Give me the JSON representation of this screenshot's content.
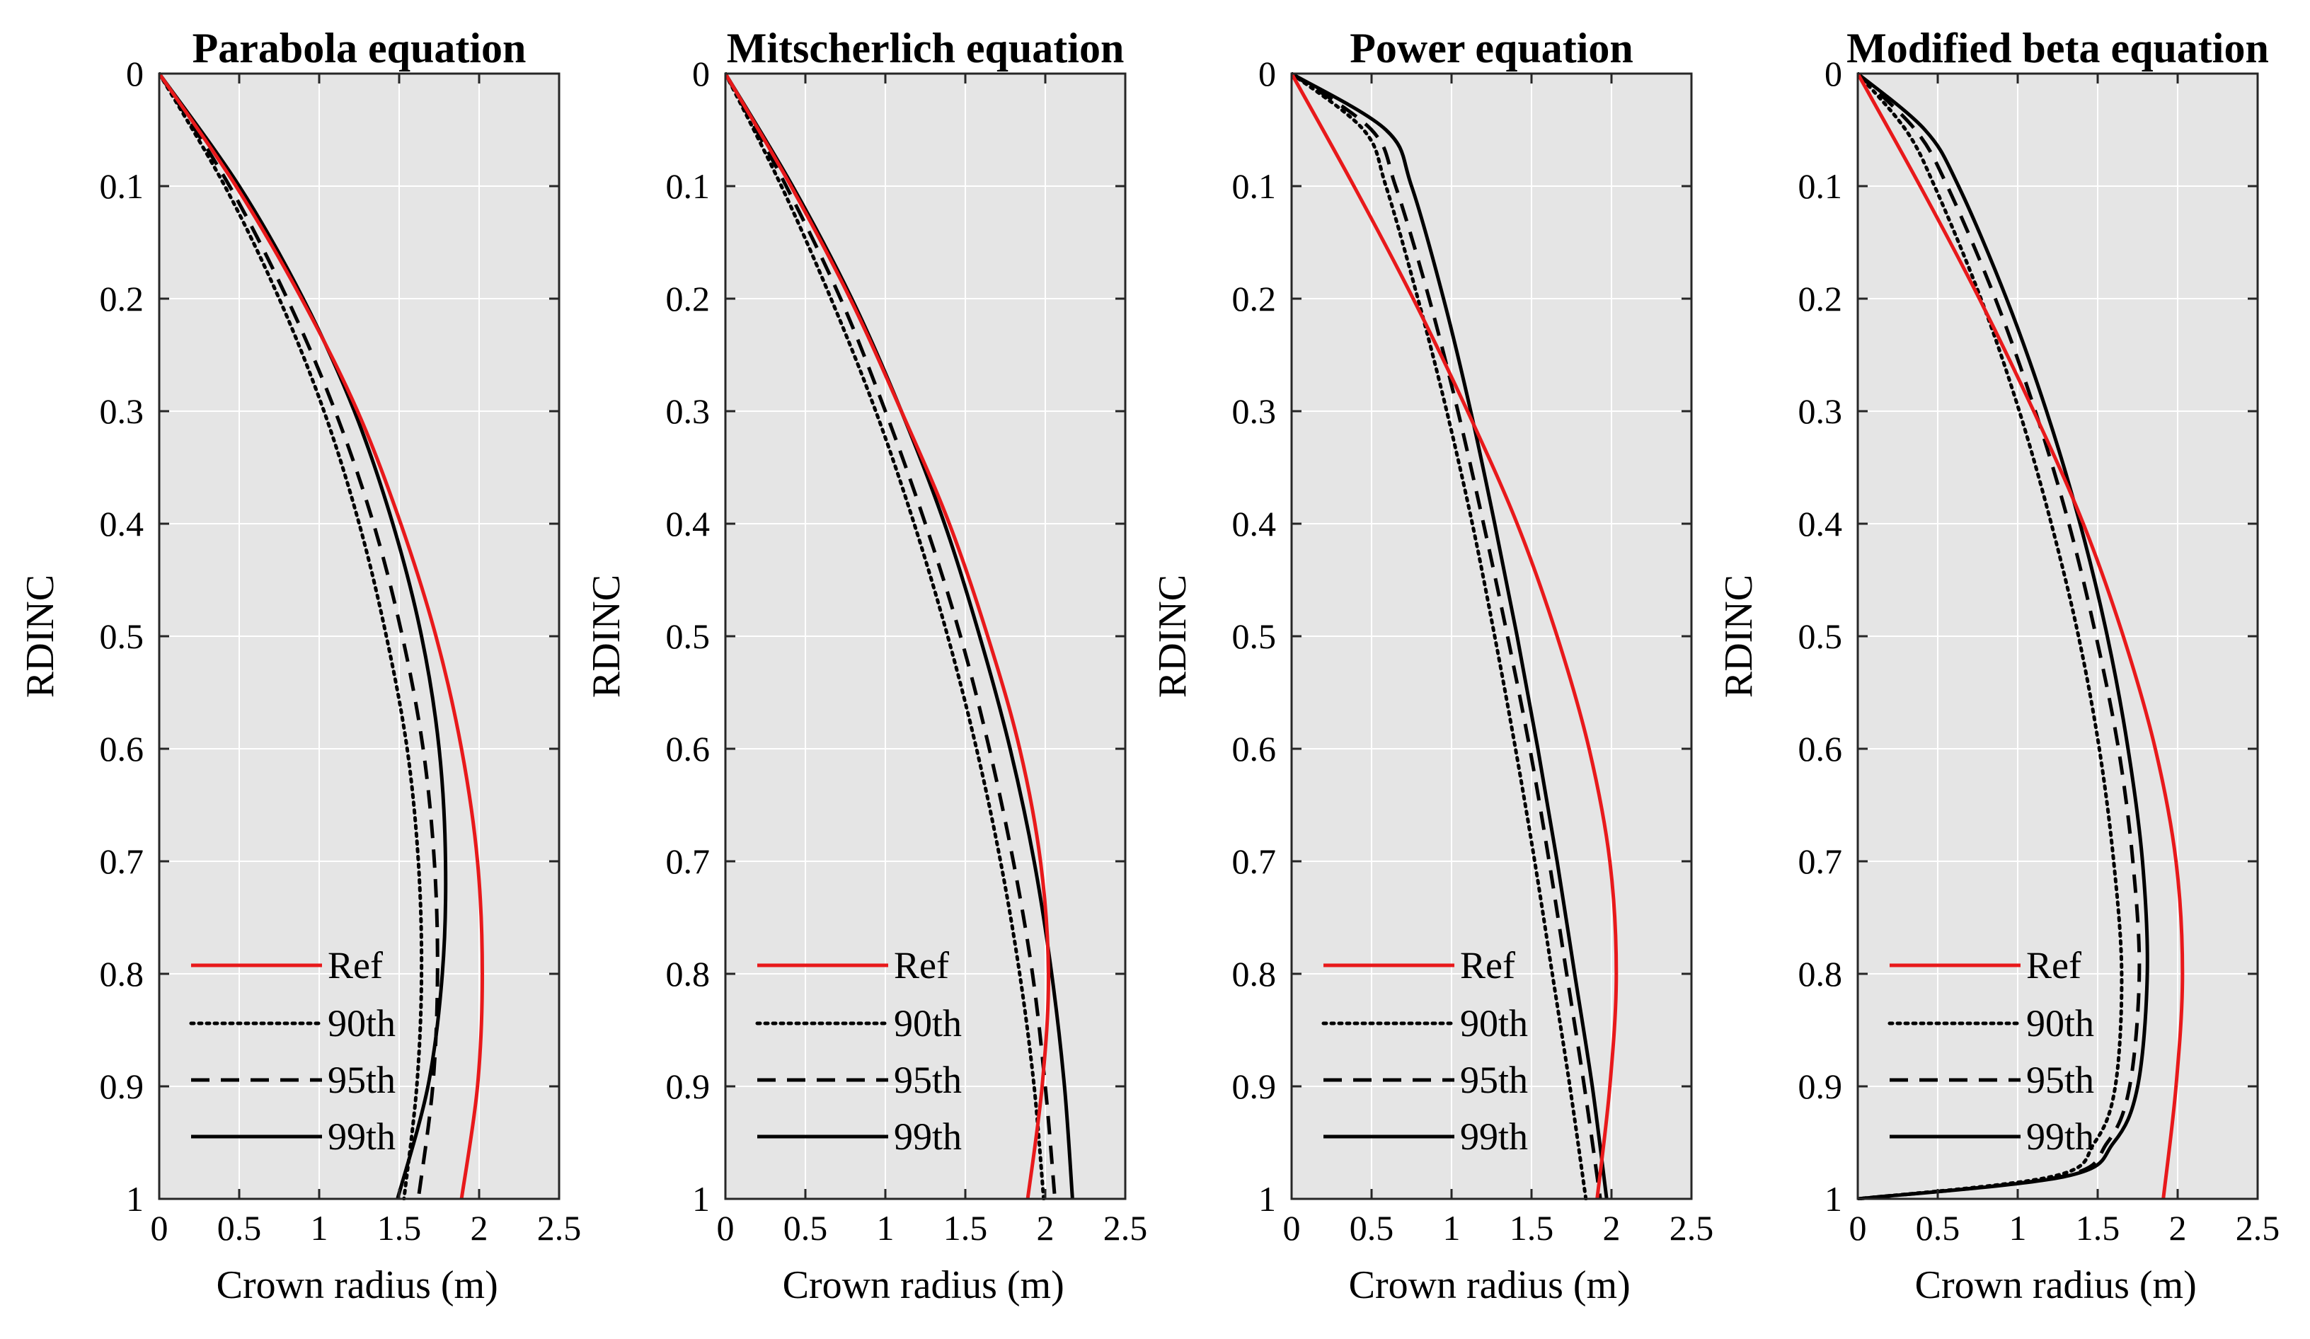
{
  "figure": {
    "plot_background": "#e5e5e5",
    "grid_color": "#ffffff",
    "colors": {
      "ref": "#e8191b",
      "percentile": "#000000"
    }
  },
  "chart_data": [
    {
      "type": "line",
      "title": "Parabola equation",
      "xlabel": "Crown radius (m)",
      "ylabel": "RDINC",
      "xlim": [
        0,
        2.5
      ],
      "ylim": [
        0,
        1
      ],
      "y_reversed": true,
      "xticks": [
        "0",
        "0.5",
        "1",
        "1.5",
        "2",
        "2.5"
      ],
      "yticks": [
        "0",
        "0.1",
        "0.2",
        "0.3",
        "0.4",
        "0.5",
        "0.6",
        "0.7",
        "0.8",
        "0.9",
        "1"
      ],
      "legend": [
        "Ref",
        "90th",
        "95th",
        "99th"
      ],
      "legend_position": "bottom-left",
      "series": [
        {
          "name": "Ref",
          "style": "solid",
          "color": "#e8191b",
          "y": [
            0,
            0.1,
            0.2,
            0.3,
            0.4,
            0.5,
            0.6,
            0.7,
            0.8,
            0.9,
            1.0
          ],
          "x": [
            0,
            0.48,
            0.89,
            1.24,
            1.51,
            1.73,
            1.89,
            1.99,
            2.02,
            1.99,
            1.89
          ]
        },
        {
          "name": "90th",
          "style": "dotted",
          "color": "#000000",
          "y": [
            0,
            0.1,
            0.2,
            0.3,
            0.4,
            0.5,
            0.6,
            0.7,
            0.8,
            0.9,
            1.0
          ],
          "x": [
            0,
            0.41,
            0.75,
            1.03,
            1.25,
            1.42,
            1.55,
            1.62,
            1.64,
            1.61,
            1.53
          ]
        },
        {
          "name": "95th",
          "style": "dashed",
          "color": "#000000",
          "y": [
            0,
            0.1,
            0.2,
            0.3,
            0.4,
            0.5,
            0.6,
            0.7,
            0.8,
            0.9,
            1.0
          ],
          "x": [
            0,
            0.44,
            0.8,
            1.1,
            1.34,
            1.52,
            1.65,
            1.72,
            1.74,
            1.71,
            1.62
          ]
        },
        {
          "name": "99th",
          "style": "solid",
          "color": "#000000",
          "y": [
            0,
            0.1,
            0.2,
            0.3,
            0.4,
            0.5,
            0.6,
            0.7,
            0.8,
            0.9,
            1.0
          ],
          "x": [
            0,
            0.5,
            0.9,
            1.22,
            1.46,
            1.64,
            1.75,
            1.79,
            1.77,
            1.68,
            1.49
          ]
        }
      ]
    },
    {
      "type": "line",
      "title": "Mitscherlich equation",
      "xlabel": "Crown radius (m)",
      "ylabel": "RDINC",
      "xlim": [
        0,
        2.5
      ],
      "ylim": [
        0,
        1
      ],
      "y_reversed": true,
      "xticks": [
        "0",
        "0.5",
        "1",
        "1.5",
        "2",
        "2.5"
      ],
      "yticks": [
        "0",
        "0.1",
        "0.2",
        "0.3",
        "0.4",
        "0.5",
        "0.6",
        "0.7",
        "0.8",
        "0.9",
        "1"
      ],
      "legend": [
        "Ref",
        "90th",
        "95th",
        "99th"
      ],
      "legend_position": "bottom-left",
      "series": [
        {
          "name": "Ref",
          "style": "solid",
          "color": "#e8191b",
          "y": [
            0,
            0.1,
            0.2,
            0.3,
            0.4,
            0.5,
            0.6,
            0.7,
            0.8,
            0.9,
            1.0
          ],
          "x": [
            0,
            0.41,
            0.78,
            1.1,
            1.4,
            1.64,
            1.84,
            1.97,
            2.02,
            1.98,
            1.89
          ]
        },
        {
          "name": "90th",
          "style": "dotted",
          "color": "#000000",
          "y": [
            0,
            0.1,
            0.2,
            0.3,
            0.4,
            0.5,
            0.6,
            0.7,
            0.8,
            0.9,
            1.0
          ],
          "x": [
            0,
            0.35,
            0.66,
            0.94,
            1.18,
            1.39,
            1.57,
            1.72,
            1.84,
            1.93,
            1.99
          ]
        },
        {
          "name": "95th",
          "style": "dashed",
          "color": "#000000",
          "y": [
            0,
            0.1,
            0.2,
            0.3,
            0.4,
            0.5,
            0.6,
            0.7,
            0.8,
            0.9,
            1.0
          ],
          "x": [
            0,
            0.38,
            0.72,
            1.0,
            1.25,
            1.47,
            1.65,
            1.8,
            1.92,
            2.0,
            2.06
          ]
        },
        {
          "name": "99th",
          "style": "solid",
          "color": "#000000",
          "y": [
            0,
            0.1,
            0.2,
            0.3,
            0.4,
            0.5,
            0.6,
            0.7,
            0.8,
            0.9,
            1.0
          ],
          "x": [
            0,
            0.42,
            0.79,
            1.1,
            1.37,
            1.59,
            1.78,
            1.93,
            2.04,
            2.12,
            2.17
          ]
        }
      ]
    },
    {
      "type": "line",
      "title": "Power equation",
      "xlabel": "Crown radius (m)",
      "ylabel": "RDINC",
      "xlim": [
        0,
        2.5
      ],
      "ylim": [
        0,
        1
      ],
      "y_reversed": true,
      "xticks": [
        "0",
        "0.5",
        "1",
        "1.5",
        "2",
        "2.5"
      ],
      "yticks": [
        "0",
        "0.1",
        "0.2",
        "0.3",
        "0.4",
        "0.5",
        "0.6",
        "0.7",
        "0.8",
        "0.9",
        "1"
      ],
      "legend": [
        "Ref",
        "90th",
        "95th",
        "99th"
      ],
      "legend_position": "bottom-left",
      "series": [
        {
          "name": "Ref",
          "style": "solid",
          "color": "#e8191b",
          "y": [
            0,
            0.1,
            0.2,
            0.3,
            0.4,
            0.5,
            0.6,
            0.7,
            0.8,
            0.9,
            1.0
          ],
          "x": [
            0,
            0.39,
            0.76,
            1.1,
            1.41,
            1.66,
            1.86,
            1.99,
            2.03,
            1.99,
            1.91
          ]
        },
        {
          "name": "90th",
          "style": "dotted",
          "color": "#000000",
          "y": [
            0,
            0.05,
            0.1,
            0.2,
            0.3,
            0.4,
            0.5,
            0.6,
            0.7,
            0.8,
            0.9,
            1.0
          ],
          "x": [
            0,
            0.45,
            0.59,
            0.79,
            0.97,
            1.13,
            1.27,
            1.4,
            1.52,
            1.63,
            1.74,
            1.84
          ]
        },
        {
          "name": "95th",
          "style": "dashed",
          "color": "#000000",
          "y": [
            0,
            0.05,
            0.1,
            0.2,
            0.3,
            0.4,
            0.5,
            0.6,
            0.7,
            0.8,
            0.9,
            1.0
          ],
          "x": [
            0,
            0.5,
            0.65,
            0.86,
            1.04,
            1.2,
            1.35,
            1.49,
            1.61,
            1.72,
            1.83,
            1.93
          ]
        },
        {
          "name": "99th",
          "style": "solid",
          "color": "#000000",
          "y": [
            0,
            0.05,
            0.1,
            0.2,
            0.3,
            0.4,
            0.5,
            0.6,
            0.7,
            0.8,
            0.9,
            1.0
          ],
          "x": [
            0,
            0.59,
            0.75,
            0.95,
            1.12,
            1.27,
            1.41,
            1.54,
            1.66,
            1.77,
            1.88,
            1.97
          ]
        }
      ]
    },
    {
      "type": "line",
      "title": "Modified beta equation",
      "xlabel": "Crown radius (m)",
      "ylabel": "RDINC",
      "xlim": [
        0,
        2.5
      ],
      "ylim": [
        0,
        1
      ],
      "y_reversed": true,
      "xticks": [
        "0",
        "0.5",
        "1",
        "1.5",
        "2",
        "2.5"
      ],
      "yticks": [
        "0",
        "0.1",
        "0.2",
        "0.3",
        "0.4",
        "0.5",
        "0.6",
        "0.7",
        "0.8",
        "0.9",
        "1"
      ],
      "legend": [
        "Ref",
        "90th",
        "95th",
        "99th"
      ],
      "legend_position": "bottom-left",
      "series": [
        {
          "name": "Ref",
          "style": "solid",
          "color": "#e8191b",
          "y": [
            0,
            0.1,
            0.2,
            0.3,
            0.4,
            0.5,
            0.6,
            0.7,
            0.8,
            0.9,
            1.0
          ],
          "x": [
            0,
            0.39,
            0.76,
            1.1,
            1.41,
            1.66,
            1.86,
            1.99,
            2.03,
            1.99,
            1.91
          ]
        },
        {
          "name": "90th",
          "style": "dotted",
          "color": "#000000",
          "y": [
            0,
            0.05,
            0.1,
            0.2,
            0.3,
            0.4,
            0.5,
            0.6,
            0.7,
            0.8,
            0.9,
            0.95,
            0.98,
            1.0
          ],
          "x": [
            0,
            0.3,
            0.48,
            0.77,
            1.01,
            1.21,
            1.38,
            1.51,
            1.6,
            1.65,
            1.61,
            1.48,
            1.22,
            0
          ]
        },
        {
          "name": "95th",
          "style": "dashed",
          "color": "#000000",
          "y": [
            0,
            0.05,
            0.1,
            0.2,
            0.3,
            0.4,
            0.5,
            0.6,
            0.7,
            0.8,
            0.9,
            0.95,
            0.98,
            1.0
          ],
          "x": [
            0,
            0.36,
            0.56,
            0.86,
            1.11,
            1.32,
            1.49,
            1.63,
            1.72,
            1.76,
            1.7,
            1.56,
            1.28,
            0
          ]
        },
        {
          "name": "99th",
          "style": "solid",
          "color": "#000000",
          "y": [
            0,
            0.05,
            0.1,
            0.2,
            0.3,
            0.4,
            0.5,
            0.6,
            0.7,
            0.8,
            0.9,
            0.95,
            0.98,
            1.0
          ],
          "x": [
            0,
            0.42,
            0.63,
            0.93,
            1.18,
            1.39,
            1.56,
            1.69,
            1.78,
            1.81,
            1.75,
            1.6,
            1.3,
            0
          ]
        }
      ]
    }
  ]
}
